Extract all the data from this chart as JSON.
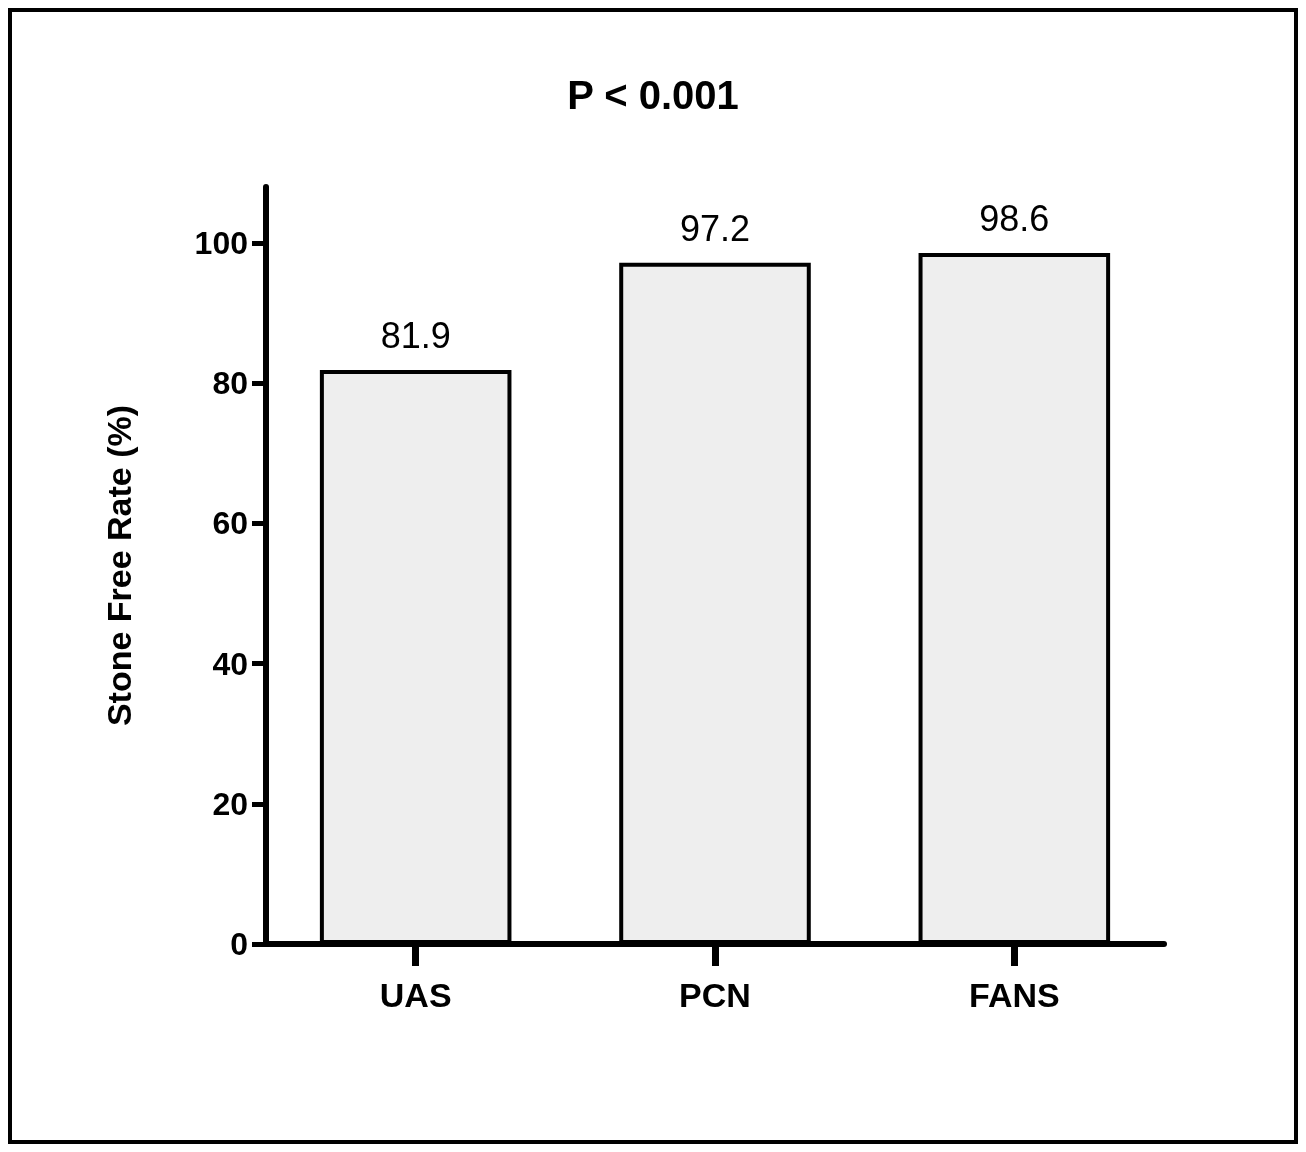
{
  "chart_data": {
    "type": "bar",
    "title": "P < 0.001",
    "ylabel": "Stone Free Rate (%)",
    "categories": [
      "UAS",
      "PCN",
      "FANS"
    ],
    "values": [
      81.9,
      97.2,
      98.6
    ],
    "color": "#eeeeee",
    "ylim": [
      0,
      108
    ],
    "yticks": [
      0,
      20,
      40,
      60,
      80,
      100
    ],
    "grid": false,
    "data_labels": true
  }
}
